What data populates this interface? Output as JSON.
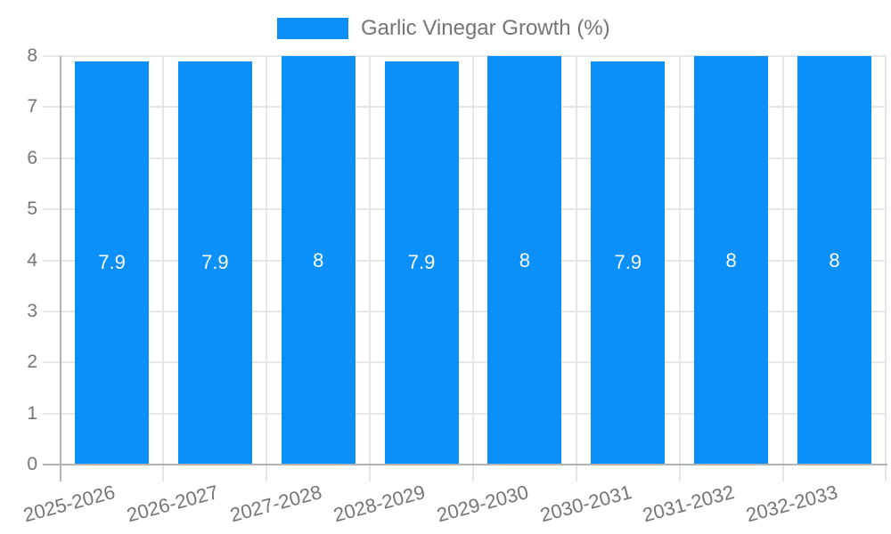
{
  "chart_data": {
    "type": "bar",
    "title": "Garlic Vinegar Growth (%)",
    "legend": {
      "label": "Garlic Vinegar Growth (%)",
      "position": "top"
    },
    "categories": [
      "2025-2026",
      "2026-2027",
      "2027-2028",
      "2028-2029",
      "2029-2030",
      "2030-2031",
      "2031-2032",
      "2032-2033"
    ],
    "series": [
      {
        "name": "Garlic Vinegar Growth (%)",
        "values": [
          7.9,
          7.9,
          8,
          7.9,
          8,
          7.9,
          8,
          8
        ]
      }
    ],
    "bar_value_labels": [
      "7.9",
      "7.9",
      "8",
      "7.9",
      "8",
      "7.9",
      "8",
      "8"
    ],
    "xlabel": "",
    "ylabel": "",
    "ylim": [
      0,
      8
    ],
    "yticks": [
      0,
      1,
      2,
      3,
      4,
      5,
      6,
      7,
      8
    ],
    "grid": true,
    "colors": {
      "bar": "#0a90f8",
      "grid": "#e6e6e6",
      "axis": "#b3b3b3",
      "tick_label": "#757575",
      "bar_label": "#ffffff",
      "background": "#ffffff"
    }
  }
}
